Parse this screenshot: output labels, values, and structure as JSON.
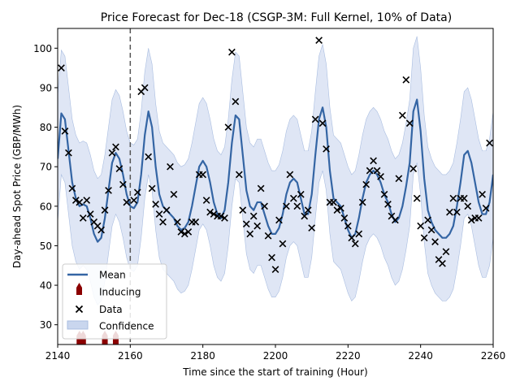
{
  "chart_data": {
    "type": "line",
    "title": "Price Forecast for Dec-18 (CSGP-3M: Full Kernel, 10% of Data)",
    "xlabel": "Time since the start of training (Hour)",
    "ylabel": "Day-ahead Spot Price (GBP/MWh)",
    "xlim": [
      2140,
      2260
    ],
    "ylim": [
      25,
      105
    ],
    "xticks": [
      2140,
      2160,
      2180,
      2200,
      2220,
      2240,
      2260
    ],
    "yticks": [
      30,
      40,
      50,
      60,
      70,
      80,
      90,
      100
    ],
    "vline_x": 2160,
    "legend": {
      "placement": "lower-left",
      "entries": [
        {
          "key": "mean",
          "label": "Mean"
        },
        {
          "key": "inducing",
          "label": "Inducing"
        },
        {
          "key": "data",
          "label": "Data"
        },
        {
          "key": "confidence",
          "label": "Confidence"
        }
      ]
    },
    "colors": {
      "mean": "#3465a4",
      "confidence": "#c9d6ee",
      "data": "#000000",
      "inducing": "#8b0000",
      "vline": "#555555"
    },
    "mean": {
      "x": [
        2140,
        2141,
        2142,
        2143,
        2144,
        2145,
        2146,
        2147,
        2148,
        2149,
        2150,
        2151,
        2152,
        2153,
        2154,
        2155,
        2156,
        2157,
        2158,
        2159,
        2160,
        2161,
        2162,
        2163,
        2164,
        2165,
        2166,
        2167,
        2168,
        2169,
        2170,
        2171,
        2172,
        2173,
        2174,
        2175,
        2176,
        2177,
        2178,
        2179,
        2180,
        2181,
        2182,
        2183,
        2184,
        2185,
        2186,
        2187,
        2188,
        2189,
        2190,
        2191,
        2192,
        2193,
        2194,
        2195,
        2196,
        2197,
        2198,
        2199,
        2200,
        2201,
        2202,
        2203,
        2204,
        2205,
        2206,
        2207,
        2208,
        2209,
        2210,
        2211,
        2212,
        2213,
        2214,
        2215,
        2216,
        2217,
        2218,
        2219,
        2220,
        2221,
        2222,
        2223,
        2224,
        2225,
        2226,
        2227,
        2228,
        2229,
        2230,
        2231,
        2232,
        2233,
        2234,
        2235,
        2236,
        2237,
        2238,
        2239,
        2240,
        2241,
        2242,
        2243,
        2244,
        2245,
        2246,
        2247,
        2248,
        2249,
        2250,
        2251,
        2252,
        2253,
        2254,
        2255,
        2256,
        2257,
        2258,
        2259,
        2260
      ],
      "y": [
        72,
        83.5,
        82,
        74,
        66,
        62,
        60,
        60.5,
        60,
        57,
        53,
        51,
        52,
        57,
        64,
        71,
        73.5,
        72,
        68,
        63,
        60,
        59.5,
        61,
        68,
        78,
        84,
        80,
        70,
        63,
        60,
        59,
        58,
        57,
        55,
        54,
        54.5,
        56,
        60,
        65,
        70,
        71.5,
        70,
        66,
        61,
        58,
        57,
        59,
        66,
        76,
        83,
        82,
        73,
        64,
        60,
        59,
        61,
        61,
        58,
        55,
        53,
        53,
        54.5,
        58,
        63,
        66,
        67,
        66,
        62,
        58,
        58,
        63,
        73,
        82,
        85,
        80,
        69,
        62,
        61,
        60,
        57,
        54,
        52,
        53,
        57,
        62,
        66,
        68,
        69,
        68,
        66,
        63,
        61,
        58,
        56,
        57,
        60,
        65,
        71,
        84,
        87,
        79,
        67,
        59,
        56,
        54,
        53,
        52,
        52,
        53,
        55,
        60,
        66,
        73,
        74,
        71,
        66,
        61,
        58,
        58,
        61,
        68
      ]
    },
    "confidence": {
      "x": [
        2140,
        2141,
        2142,
        2143,
        2144,
        2145,
        2146,
        2147,
        2148,
        2149,
        2150,
        2151,
        2152,
        2153,
        2154,
        2155,
        2156,
        2157,
        2158,
        2159,
        2160,
        2161,
        2162,
        2163,
        2164,
        2165,
        2166,
        2167,
        2168,
        2169,
        2170,
        2171,
        2172,
        2173,
        2174,
        2175,
        2176,
        2177,
        2178,
        2179,
        2180,
        2181,
        2182,
        2183,
        2184,
        2185,
        2186,
        2187,
        2188,
        2189,
        2190,
        2191,
        2192,
        2193,
        2194,
        2195,
        2196,
        2197,
        2198,
        2199,
        2200,
        2201,
        2202,
        2203,
        2204,
        2205,
        2206,
        2207,
        2208,
        2209,
        2210,
        2211,
        2212,
        2213,
        2214,
        2215,
        2216,
        2217,
        2218,
        2219,
        2220,
        2221,
        2222,
        2223,
        2224,
        2225,
        2226,
        2227,
        2228,
        2229,
        2230,
        2231,
        2232,
        2233,
        2234,
        2235,
        2236,
        2237,
        2238,
        2239,
        2240,
        2241,
        2242,
        2243,
        2244,
        2245,
        2246,
        2247,
        2248,
        2249,
        2250,
        2251,
        2252,
        2253,
        2254,
        2255,
        2256,
        2257,
        2258,
        2259,
        2260
      ],
      "lower": [
        56,
        68,
        66,
        58,
        50,
        46,
        44,
        45,
        44,
        41,
        37,
        35,
        36,
        41,
        48,
        55,
        58,
        56,
        52,
        47,
        44,
        43.5,
        45,
        52,
        62,
        68,
        64,
        54,
        47,
        44,
        43,
        42,
        41,
        39,
        38,
        38.5,
        40,
        44,
        49,
        54,
        55.5,
        54,
        50,
        45,
        42,
        41,
        43,
        50,
        60,
        67,
        66,
        57,
        48,
        44,
        43,
        45,
        45,
        42,
        39,
        37,
        37,
        38.5,
        42,
        47,
        50,
        51,
        50,
        46,
        42,
        42,
        47,
        57,
        66,
        69,
        64,
        53,
        46,
        45,
        44,
        41,
        38,
        36,
        37,
        41,
        46,
        50,
        52,
        53,
        52,
        50,
        47,
        45,
        42,
        40,
        41,
        44,
        49,
        55,
        68,
        71,
        63,
        51,
        43,
        40,
        38,
        37,
        36,
        36,
        37,
        39,
        44,
        50,
        57,
        58,
        55,
        50,
        45,
        42,
        42,
        45,
        52
      ],
      "upper": [
        88,
        99.5,
        98,
        90,
        82,
        78,
        76,
        76.5,
        76,
        73,
        69,
        67,
        68,
        73,
        80,
        87,
        89.5,
        88,
        84,
        79,
        76,
        75.5,
        77,
        84,
        94,
        100,
        96,
        86,
        79,
        76,
        75,
        74,
        73,
        71,
        70,
        70.5,
        72,
        76,
        81,
        86,
        87.5,
        86,
        82,
        77,
        74,
        73,
        75,
        82,
        92,
        99,
        98,
        89,
        80,
        76,
        75,
        77,
        77,
        74,
        71,
        69,
        69,
        70.5,
        74,
        79,
        82,
        83,
        82,
        78,
        74,
        74,
        79,
        89,
        98,
        101,
        96,
        85,
        78,
        77,
        76,
        73,
        70,
        68,
        69,
        73,
        78,
        82,
        84,
        85,
        84,
        82,
        79,
        77,
        74,
        72,
        73,
        76,
        81,
        87,
        100,
        103,
        95,
        83,
        75,
        72,
        70,
        69,
        68,
        68,
        69,
        71,
        76,
        82,
        89,
        90,
        87,
        82,
        77,
        74,
        74,
        77,
        84
      ]
    },
    "data_points": [
      [
        2141,
        95
      ],
      [
        2142,
        79
      ],
      [
        2143,
        73.5
      ],
      [
        2144,
        64.5
      ],
      [
        2145,
        61.5
      ],
      [
        2146,
        61
      ],
      [
        2147,
        57
      ],
      [
        2148,
        61.5
      ],
      [
        2149,
        58
      ],
      [
        2150,
        56
      ],
      [
        2151,
        55
      ],
      [
        2152,
        54
      ],
      [
        2153,
        59
      ],
      [
        2154,
        64
      ],
      [
        2155,
        73.5
      ],
      [
        2156,
        75
      ],
      [
        2157,
        69.5
      ],
      [
        2158,
        65.5
      ],
      [
        2159,
        61
      ],
      [
        2161,
        61.5
      ],
      [
        2162,
        63.5
      ],
      [
        2163,
        89
      ],
      [
        2164,
        90
      ],
      [
        2165,
        72.5
      ],
      [
        2166,
        64.5
      ],
      [
        2167,
        60.5
      ],
      [
        2168,
        58
      ],
      [
        2169,
        56
      ],
      [
        2170,
        59
      ],
      [
        2171,
        70
      ],
      [
        2172,
        63
      ],
      [
        2173,
        56
      ],
      [
        2174,
        53.5
      ],
      [
        2175,
        53
      ],
      [
        2176,
        53.5
      ],
      [
        2177,
        56
      ],
      [
        2178,
        56
      ],
      [
        2179,
        68
      ],
      [
        2180,
        68
      ],
      [
        2181,
        61.5
      ],
      [
        2182,
        58.5
      ],
      [
        2183,
        58
      ],
      [
        2184,
        57.5
      ],
      [
        2185,
        57.5
      ],
      [
        2186,
        57
      ],
      [
        2187,
        80
      ],
      [
        2188,
        99
      ],
      [
        2189,
        86.5
      ],
      [
        2190,
        68
      ],
      [
        2191,
        59
      ],
      [
        2192,
        55.5
      ],
      [
        2193,
        53
      ],
      [
        2194,
        57.5
      ],
      [
        2195,
        55
      ],
      [
        2196,
        64.5
      ],
      [
        2197,
        60
      ],
      [
        2198,
        52.5
      ],
      [
        2199,
        47
      ],
      [
        2200,
        44
      ],
      [
        2201,
        56.5
      ],
      [
        2202,
        50.5
      ],
      [
        2203,
        60
      ],
      [
        2204,
        68
      ],
      [
        2205,
        62
      ],
      [
        2206,
        60
      ],
      [
        2207,
        63
      ],
      [
        2208,
        57.5
      ],
      [
        2209,
        59
      ],
      [
        2210,
        54.5
      ],
      [
        2211,
        82
      ],
      [
        2212,
        102
      ],
      [
        2213,
        81
      ],
      [
        2214,
        74.5
      ],
      [
        2215,
        61
      ],
      [
        2216,
        61
      ],
      [
        2217,
        59
      ],
      [
        2218,
        59.5
      ],
      [
        2219,
        57
      ],
      [
        2220,
        55
      ],
      [
        2221,
        52
      ],
      [
        2222,
        50.5
      ],
      [
        2223,
        53
      ],
      [
        2224,
        61
      ],
      [
        2225,
        65.5
      ],
      [
        2226,
        69
      ],
      [
        2227,
        71.5
      ],
      [
        2228,
        69
      ],
      [
        2229,
        67.5
      ],
      [
        2230,
        63
      ],
      [
        2231,
        60.5
      ],
      [
        2232,
        57.5
      ],
      [
        2233,
        56.5
      ],
      [
        2234,
        67
      ],
      [
        2235,
        83
      ],
      [
        2236,
        92
      ],
      [
        2237,
        81
      ],
      [
        2238,
        69.5
      ],
      [
        2239,
        62
      ],
      [
        2240,
        55
      ],
      [
        2241,
        52
      ],
      [
        2242,
        56.5
      ],
      [
        2243,
        54
      ],
      [
        2244,
        51
      ],
      [
        2245,
        46.5
      ],
      [
        2246,
        45.5
      ],
      [
        2247,
        48.5
      ],
      [
        2248,
        58.5
      ],
      [
        2249,
        62
      ],
      [
        2250,
        58.5
      ],
      [
        2251,
        62
      ],
      [
        2252,
        62
      ],
      [
        2253,
        60
      ],
      [
        2254,
        56.5
      ],
      [
        2255,
        57
      ],
      [
        2256,
        57
      ],
      [
        2257,
        63
      ],
      [
        2258,
        59.5
      ],
      [
        2259,
        76
      ]
    ],
    "inducing_x": [
      2146,
      2147,
      2153,
      2156
    ]
  }
}
